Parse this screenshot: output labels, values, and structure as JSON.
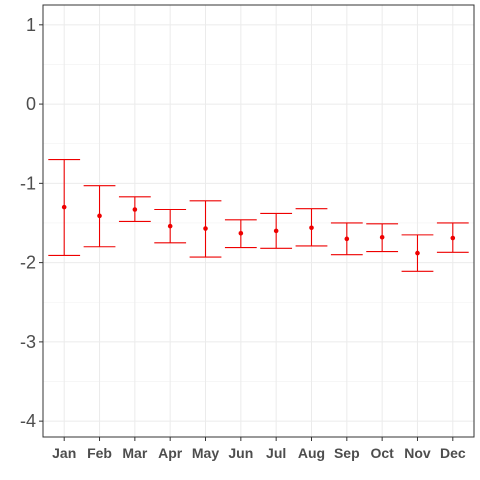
{
  "chart_data": {
    "type": "errorbar",
    "title": "",
    "xlabel": "",
    "ylabel": "",
    "categories": [
      "Jan",
      "Feb",
      "Mar",
      "Apr",
      "May",
      "Jun",
      "Jul",
      "Aug",
      "Sep",
      "Oct",
      "Nov",
      "Dec"
    ],
    "series": [
      {
        "mean": [
          -1.3,
          -1.41,
          -1.33,
          -1.54,
          -1.57,
          -1.63,
          -1.6,
          -1.56,
          -1.7,
          -1.68,
          -1.88,
          -1.69
        ],
        "lower": [
          -1.91,
          -1.8,
          -1.48,
          -1.75,
          -1.93,
          -1.81,
          -1.82,
          -1.79,
          -1.9,
          -1.86,
          -2.11,
          -1.87
        ],
        "upper": [
          -0.7,
          -1.03,
          -1.17,
          -1.33,
          -1.22,
          -1.46,
          -1.38,
          -1.32,
          -1.5,
          -1.51,
          -1.65,
          -1.5
        ]
      }
    ],
    "ylim": [
      -4.2,
      1.25
    ],
    "yticks": [
      1,
      0,
      -1,
      -2,
      -3,
      -4
    ],
    "grid": true,
    "legend": "none",
    "color": "#ee0000"
  }
}
